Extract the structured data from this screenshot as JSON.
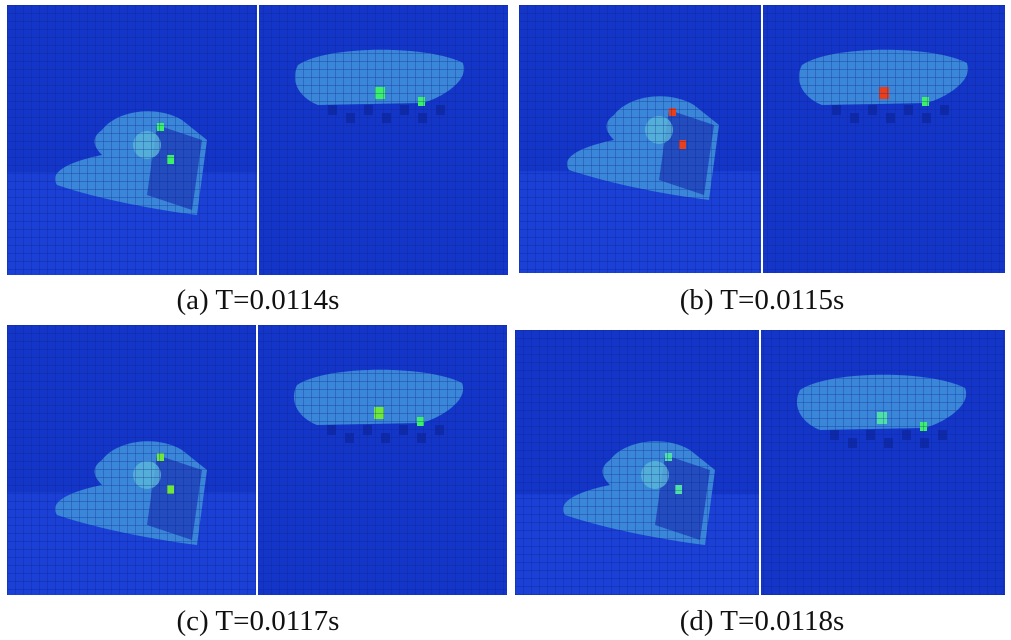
{
  "panels": [
    {
      "caption": "(a) T=0.0114s"
    },
    {
      "caption": "(b) T=0.0115s"
    },
    {
      "caption": "(c) T=0.0117s"
    },
    {
      "caption": "(d) T=0.0118s"
    }
  ]
}
